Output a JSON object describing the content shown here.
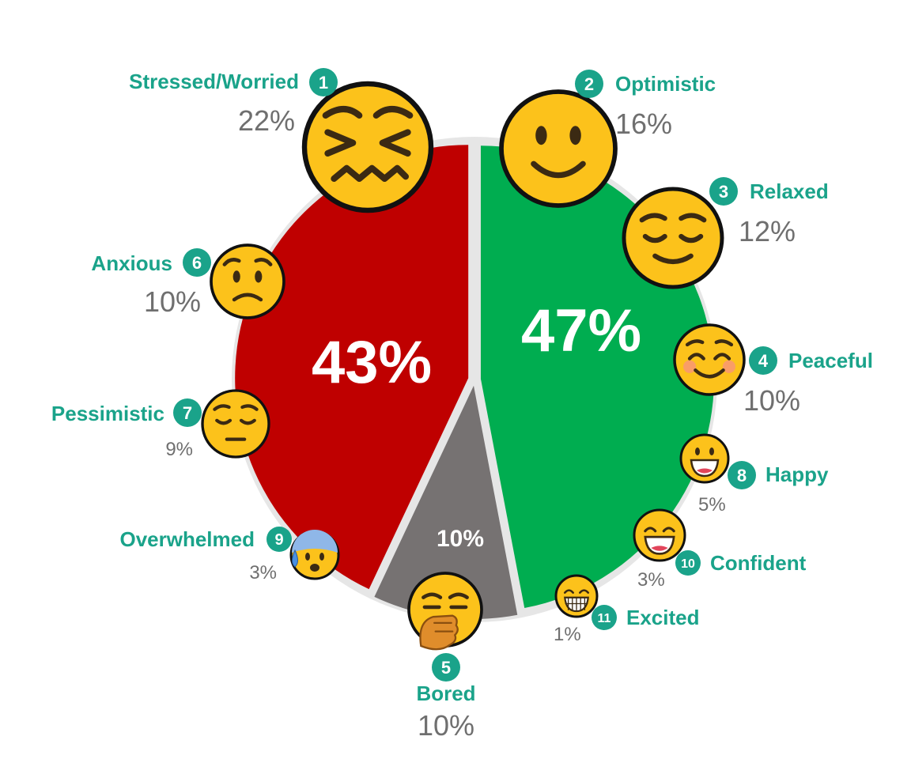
{
  "chart_data": {
    "type": "pie",
    "groups": [
      {
        "key": "negative",
        "value": 43,
        "label": "43%",
        "color": "#bf0000"
      },
      {
        "key": "neutral",
        "value": 10,
        "label": "10%",
        "color": "#767272"
      },
      {
        "key": "positive",
        "value": 47,
        "label": "47%",
        "color": "#00ad50"
      }
    ],
    "emotions": [
      {
        "rank": "1",
        "name": "Stressed/Worried",
        "value": "22%",
        "group": "negative",
        "icon": "confounded-face-icon"
      },
      {
        "rank": "2",
        "name": "Optimistic",
        "value": "16%",
        "group": "positive",
        "icon": "slightly-smiling-face-icon"
      },
      {
        "rank": "3",
        "name": "Relaxed",
        "value": "12%",
        "group": "positive",
        "icon": "relieved-face-icon"
      },
      {
        "rank": "4",
        "name": "Peaceful",
        "value": "10%",
        "group": "positive",
        "icon": "smiling-face-with-blush-icon"
      },
      {
        "rank": "5",
        "name": "Bored",
        "value": "10%",
        "group": "neutral",
        "icon": "yawning-face-icon"
      },
      {
        "rank": "6",
        "name": "Anxious",
        "value": "10%",
        "group": "negative",
        "icon": "frowning-face-icon"
      },
      {
        "rank": "7",
        "name": "Pessimistic",
        "value": "9%",
        "group": "negative",
        "icon": "pensive-face-icon"
      },
      {
        "rank": "8",
        "name": "Happy",
        "value": "5%",
        "group": "positive",
        "icon": "grinning-face-icon"
      },
      {
        "rank": "9",
        "name": "Overwhelmed",
        "value": "3%",
        "group": "negative",
        "icon": "anxious-face-with-sweat-icon"
      },
      {
        "rank": "10",
        "name": "Confident",
        "value": "3%",
        "group": "positive",
        "icon": "grinning-face-with-smiling-eyes-icon"
      },
      {
        "rank": "11",
        "name": "Excited",
        "value": "1%",
        "group": "positive",
        "icon": "beaming-face-icon"
      }
    ],
    "colors": {
      "ring": "#e6e6e6",
      "label": "#1aa38a",
      "badge": "#1aa38a",
      "percent": "#6f6f6f",
      "emoji_face": "#fcc21b",
      "emoji_outline": "#111111"
    }
  }
}
